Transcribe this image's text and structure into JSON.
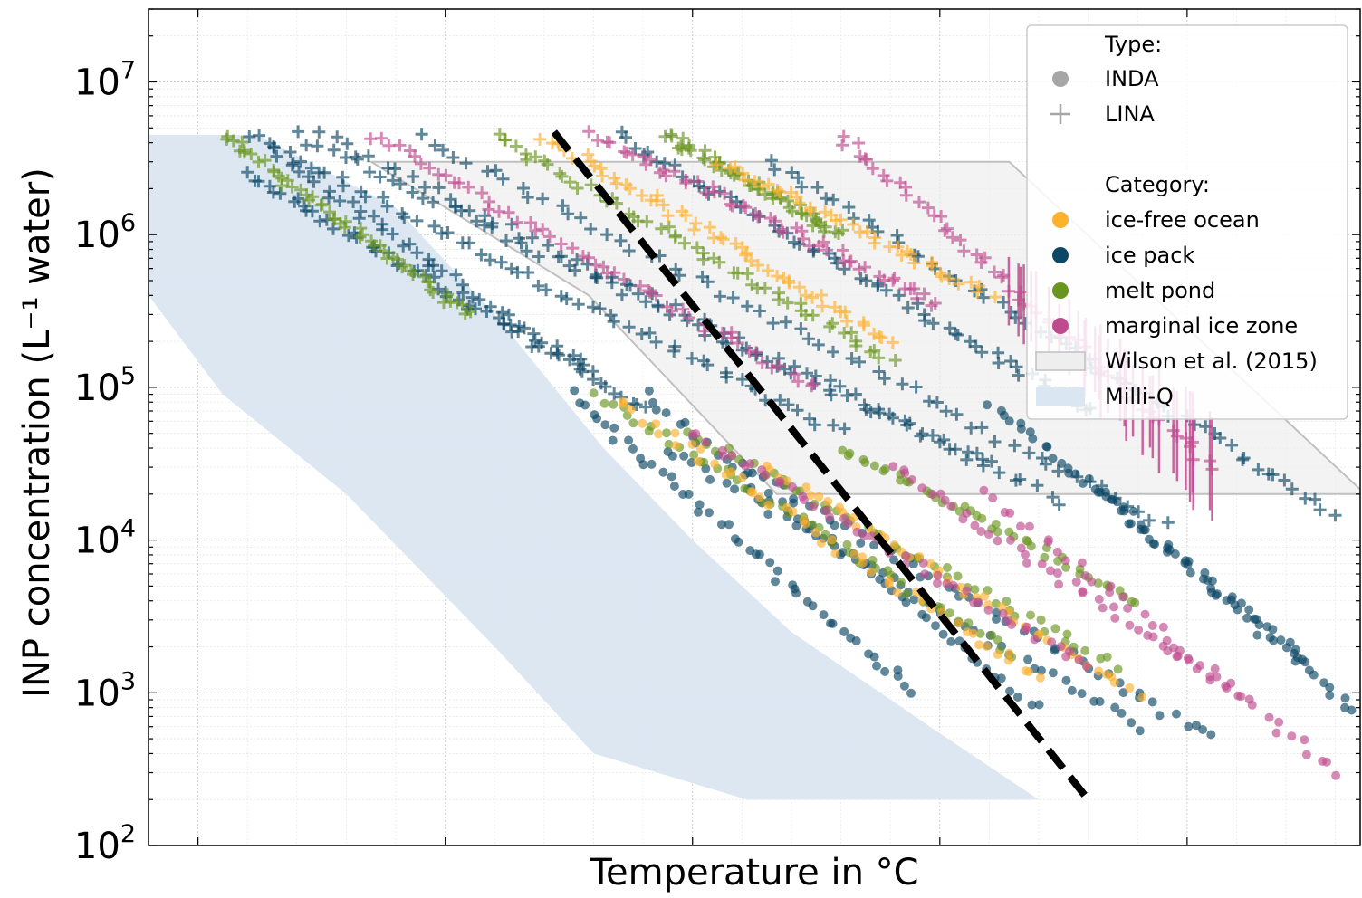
{
  "chart_data": {
    "type": "scatter",
    "title": "",
    "xlabel": "Temperature in °C",
    "ylabel": "INP concentration (L⁻¹ water)",
    "y_scale": "log",
    "ylim": [
      100,
      30000000
    ],
    "xlim": [
      -31,
      -6.5
    ],
    "x_tick_labels_shown": false,
    "y_ticks": [
      {
        "value": 100,
        "base": "10",
        "exp": "2"
      },
      {
        "value": 1000,
        "base": "10",
        "exp": "3"
      },
      {
        "value": 10000,
        "base": "10",
        "exp": "4"
      },
      {
        "value": 100000,
        "base": "10",
        "exp": "5"
      },
      {
        "value": 1000000,
        "base": "10",
        "exp": "6"
      },
      {
        "value": 10000000,
        "base": "10",
        "exp": "7"
      }
    ],
    "grid": true,
    "legend_position": "top-right",
    "legend": {
      "type_header": "Type:",
      "types": [
        {
          "label": "INDA",
          "marker": "circle"
        },
        {
          "label": "LINA",
          "marker": "plus"
        }
      ],
      "category_header": "Category:",
      "categories": [
        {
          "key": "ice_free",
          "label": "ice-free ocean",
          "color": "#fdb12d"
        },
        {
          "key": "ice_pack",
          "label": "ice pack",
          "color": "#0d4766"
        },
        {
          "key": "melt_pond",
          "label": "melt pond",
          "color": "#6a951f"
        },
        {
          "key": "miz",
          "label": "marginal ice zone",
          "color": "#bf4b8f"
        }
      ],
      "areas": [
        {
          "label": "Wilson et al. (2015)",
          "fill": "#eeeeee",
          "stroke": "#c0c0c0"
        },
        {
          "label": "Milli-Q",
          "fill": "#dae6f1",
          "stroke": "#dae6f1"
        }
      ]
    },
    "reference_line": {
      "style": "dashed",
      "color": "#000000",
      "points": [
        [
          -22.8,
          4700000
        ],
        [
          -12.0,
          200
        ]
      ]
    },
    "wilson_2015_region": [
      [
        -26.5,
        3000000
      ],
      [
        -13.6,
        3000000
      ],
      [
        -6.4,
        20000
      ],
      [
        -18.3,
        20000
      ],
      [
        -22.1,
        400000
      ],
      [
        -26.5,
        3000000
      ]
    ],
    "milliq_region": [
      [
        -31.0,
        4500000
      ],
      [
        -28.8,
        4500000
      ],
      [
        -26.0,
        1500000
      ],
      [
        -24.0,
        300000
      ],
      [
        -21.8,
        40000
      ],
      [
        -20.0,
        10000
      ],
      [
        -18.0,
        2500
      ],
      [
        -15.2,
        600
      ],
      [
        -13.0,
        200
      ],
      [
        -18.9,
        200
      ],
      [
        -22.0,
        400
      ],
      [
        -24.0,
        2000
      ],
      [
        -27.0,
        20000
      ],
      [
        -29.5,
        90000
      ],
      [
        -31.0,
        400000
      ]
    ],
    "series": [
      {
        "category": "ice_pack",
        "type": "LINA",
        "n": 60,
        "x": [
          -29.0,
          -17.0
        ],
        "y": [
          4500000,
          50000
        ]
      },
      {
        "category": "ice_pack",
        "type": "LINA",
        "n": 60,
        "x": [
          -28.0,
          -14.0
        ],
        "y": [
          4500000,
          30000
        ]
      },
      {
        "category": "ice_pack",
        "type": "LINA",
        "n": 60,
        "x": [
          -27.5,
          -12.5
        ],
        "y": [
          4500000,
          18000
        ]
      },
      {
        "category": "ice_pack",
        "type": "LINA",
        "n": 60,
        "x": [
          -25.5,
          -10.5
        ],
        "y": [
          4500000,
          13000
        ]
      },
      {
        "category": "ice_pack",
        "type": "LINA",
        "n": 60,
        "x": [
          -21.5,
          -12.0
        ],
        "y": [
          4500000,
          70000
        ]
      },
      {
        "category": "ice_pack",
        "type": "LINA",
        "n": 60,
        "x": [
          -18.5,
          -7.0
        ],
        "y": [
          3000000,
          15000
        ]
      },
      {
        "category": "ice_pack",
        "type": "LINA",
        "n": 50,
        "x": [
          -29.0,
          -22.0
        ],
        "y": [
          2500000,
          120000
        ]
      },
      {
        "category": "ice_pack",
        "type": "LINA",
        "n": 50,
        "x": [
          -28.5,
          -21.0
        ],
        "y": [
          3500000,
          70000
        ]
      },
      {
        "category": "melt_pond",
        "type": "LINA",
        "n": 55,
        "x": [
          -29.5,
          -24.5
        ],
        "y": [
          4500000,
          300000
        ]
      },
      {
        "category": "melt_pond",
        "type": "LINA",
        "n": 55,
        "x": [
          -24.0,
          -16.0
        ],
        "y": [
          4500000,
          150000
        ]
      },
      {
        "category": "melt_pond",
        "type": "LINA",
        "n": 55,
        "x": [
          -20.5,
          -17.0
        ],
        "y": [
          4500000,
          1000000
        ]
      },
      {
        "category": "ice_free",
        "type": "LINA",
        "n": 55,
        "x": [
          -23.0,
          -16.0
        ],
        "y": [
          4500000,
          200000
        ]
      },
      {
        "category": "ice_free",
        "type": "LINA",
        "n": 40,
        "x": [
          -19.5,
          -14.0
        ],
        "y": [
          3000000,
          400000
        ]
      },
      {
        "category": "miz",
        "type": "LINA",
        "n": 55,
        "x": [
          -26.5,
          -17.5
        ],
        "y": [
          4500000,
          100000
        ]
      },
      {
        "category": "miz",
        "type": "LINA",
        "n": 55,
        "x": [
          -22.0,
          -15.0
        ],
        "y": [
          4500000,
          350000
        ]
      },
      {
        "category": "miz",
        "type": "LINA",
        "n": 60,
        "x": [
          -17.0,
          -9.5
        ],
        "y": [
          4500000,
          30000
        ],
        "errorbars": true
      },
      {
        "category": "ice_pack",
        "type": "INDA",
        "n": 50,
        "x": [
          -22.5,
          -15.5
        ],
        "y": [
          90000,
          1000
        ]
      },
      {
        "category": "ice_pack",
        "type": "INDA",
        "n": 50,
        "x": [
          -21.0,
          -13.0
        ],
        "y": [
          90000,
          800
        ]
      },
      {
        "category": "ice_pack",
        "type": "INDA",
        "n": 50,
        "x": [
          -20.5,
          -11.0
        ],
        "y": [
          40000,
          600
        ]
      },
      {
        "category": "ice_pack",
        "type": "INDA",
        "n": 50,
        "x": [
          -19.0,
          -9.5
        ],
        "y": [
          30000,
          500
        ]
      },
      {
        "category": "ice_pack",
        "type": "INDA",
        "n": 50,
        "x": [
          -14.0,
          -7.5
        ],
        "y": [
          80000,
          1500
        ]
      },
      {
        "category": "ice_pack",
        "type": "INDA",
        "n": 40,
        "x": [
          -12.0,
          -6.5
        ],
        "y": [
          25000,
          700
        ]
      },
      {
        "category": "melt_pond",
        "type": "INDA",
        "n": 50,
        "x": [
          -22.0,
          -13.5
        ],
        "y": [
          90000,
          1800
        ]
      },
      {
        "category": "melt_pond",
        "type": "INDA",
        "n": 50,
        "x": [
          -20.0,
          -11.5
        ],
        "y": [
          50000,
          1500
        ]
      },
      {
        "category": "melt_pond",
        "type": "INDA",
        "n": 45,
        "x": [
          -17.0,
          -11.0
        ],
        "y": [
          40000,
          4000
        ]
      },
      {
        "category": "ice_free",
        "type": "INDA",
        "n": 50,
        "x": [
          -21.5,
          -13.0
        ],
        "y": [
          80000,
          1200
        ]
      },
      {
        "category": "ice_free",
        "type": "INDA",
        "n": 45,
        "x": [
          -18.5,
          -11.0
        ],
        "y": [
          30000,
          1000
        ]
      },
      {
        "category": "miz",
        "type": "INDA",
        "n": 50,
        "x": [
          -20.0,
          -12.0
        ],
        "y": [
          50000,
          1500
        ]
      },
      {
        "category": "miz",
        "type": "INDA",
        "n": 45,
        "x": [
          -16.0,
          -9.0
        ],
        "y": [
          30000,
          1000
        ]
      },
      {
        "category": "miz",
        "type": "INDA",
        "n": 40,
        "x": [
          -14.0,
          -7.0
        ],
        "y": [
          20000,
          300
        ]
      }
    ]
  }
}
